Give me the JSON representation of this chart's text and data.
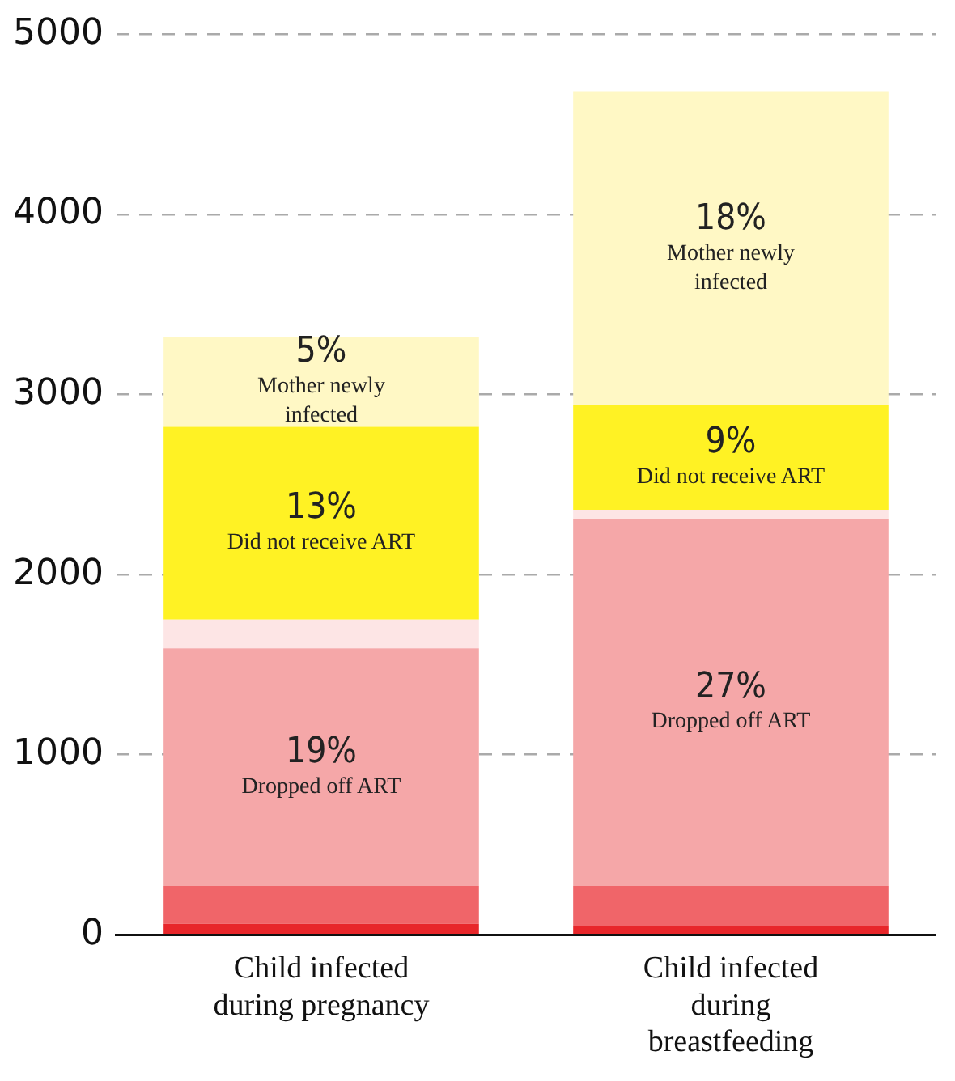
{
  "chart_data": {
    "type": "bar",
    "stacked": true,
    "categories": [
      "Child infected during pregnancy",
      "Child infected during breastfeeding"
    ],
    "series": [
      {
        "color": "#e8262a",
        "values": [
          60,
          50
        ]
      },
      {
        "color": "#f06569",
        "values": [
          210,
          220
        ]
      },
      {
        "name": "Dropped off ART",
        "color": "#f5a7a8",
        "values": [
          1320,
          2040
        ]
      },
      {
        "color": "#fde5e5",
        "values": [
          160,
          50
        ]
      },
      {
        "name": "Did not receive ART",
        "color": "#fff224",
        "values": [
          1070,
          580
        ]
      },
      {
        "name": "Mother newly infected",
        "color": "#fff8c5",
        "values": [
          500,
          1740
        ]
      }
    ],
    "annotations": [
      "19%",
      "13%",
      "5%",
      "27%",
      "9%",
      "18%"
    ],
    "ylim": [
      0,
      5000
    ],
    "yticks": [
      0,
      1000,
      2000,
      3000,
      4000,
      5000
    ],
    "grid": "y",
    "legend": false
  }
}
